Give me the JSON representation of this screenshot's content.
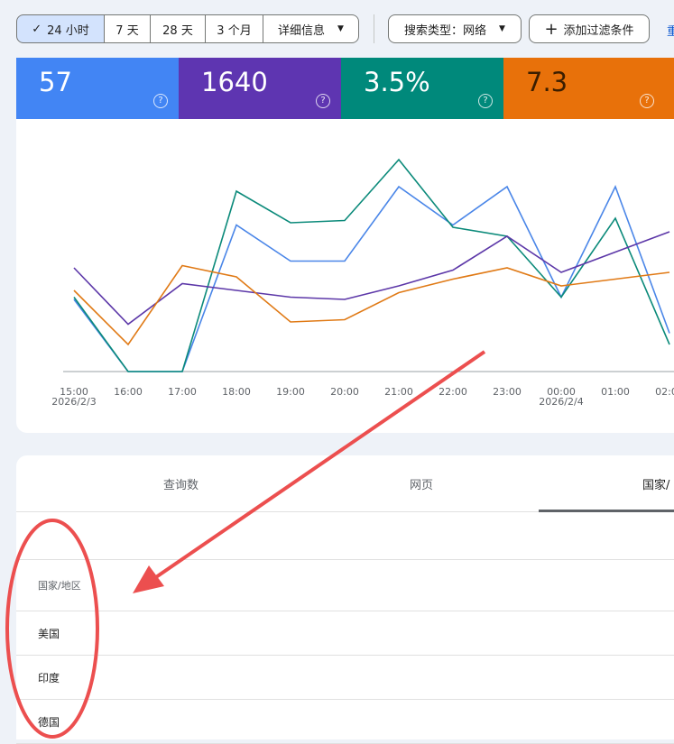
{
  "filters": {
    "time_ranges": [
      "24 小时",
      "7 天",
      "28 天",
      "3 个月"
    ],
    "details": "详细信息",
    "search_type": "搜索类型：网络",
    "add_filter": "添加过滤条件",
    "reset": "重"
  },
  "metrics": [
    "57",
    "1640",
    "3.5%",
    "7.3"
  ],
  "chart_data": {
    "type": "line",
    "categories": [
      "15:00",
      "16:00",
      "17:00",
      "18:00",
      "19:00",
      "20:00",
      "21:00",
      "22:00",
      "23:00",
      "00:00",
      "01:00",
      "02:00"
    ],
    "dates": [
      "2026/2/3",
      null,
      null,
      null,
      null,
      null,
      null,
      null,
      null,
      "2026/2/4",
      null,
      null
    ],
    "ylim": [
      0,
      100
    ],
    "series": [
      {
        "color": "#4a86e8",
        "values": [
          32,
          0,
          0,
          65,
          49,
          49,
          82,
          65,
          82,
          33,
          82,
          17
        ]
      },
      {
        "color": "#0b8a7a",
        "values": [
          33,
          0,
          0,
          80,
          66,
          67,
          94,
          64,
          60,
          33,
          68,
          12
        ]
      },
      {
        "color": "#5c37a8",
        "values": [
          46,
          21,
          39,
          36,
          33,
          32,
          38,
          45,
          60,
          44,
          53,
          62
        ]
      },
      {
        "color": "#e07a16",
        "values": [
          36,
          12,
          47,
          42,
          22,
          23,
          35,
          41,
          46,
          38,
          41,
          44
        ]
      }
    ]
  },
  "tabs": [
    "查询数",
    "网页",
    "国家/"
  ],
  "table": {
    "header": "国家/地区",
    "rows": [
      "美国",
      "印度",
      "德国"
    ]
  }
}
